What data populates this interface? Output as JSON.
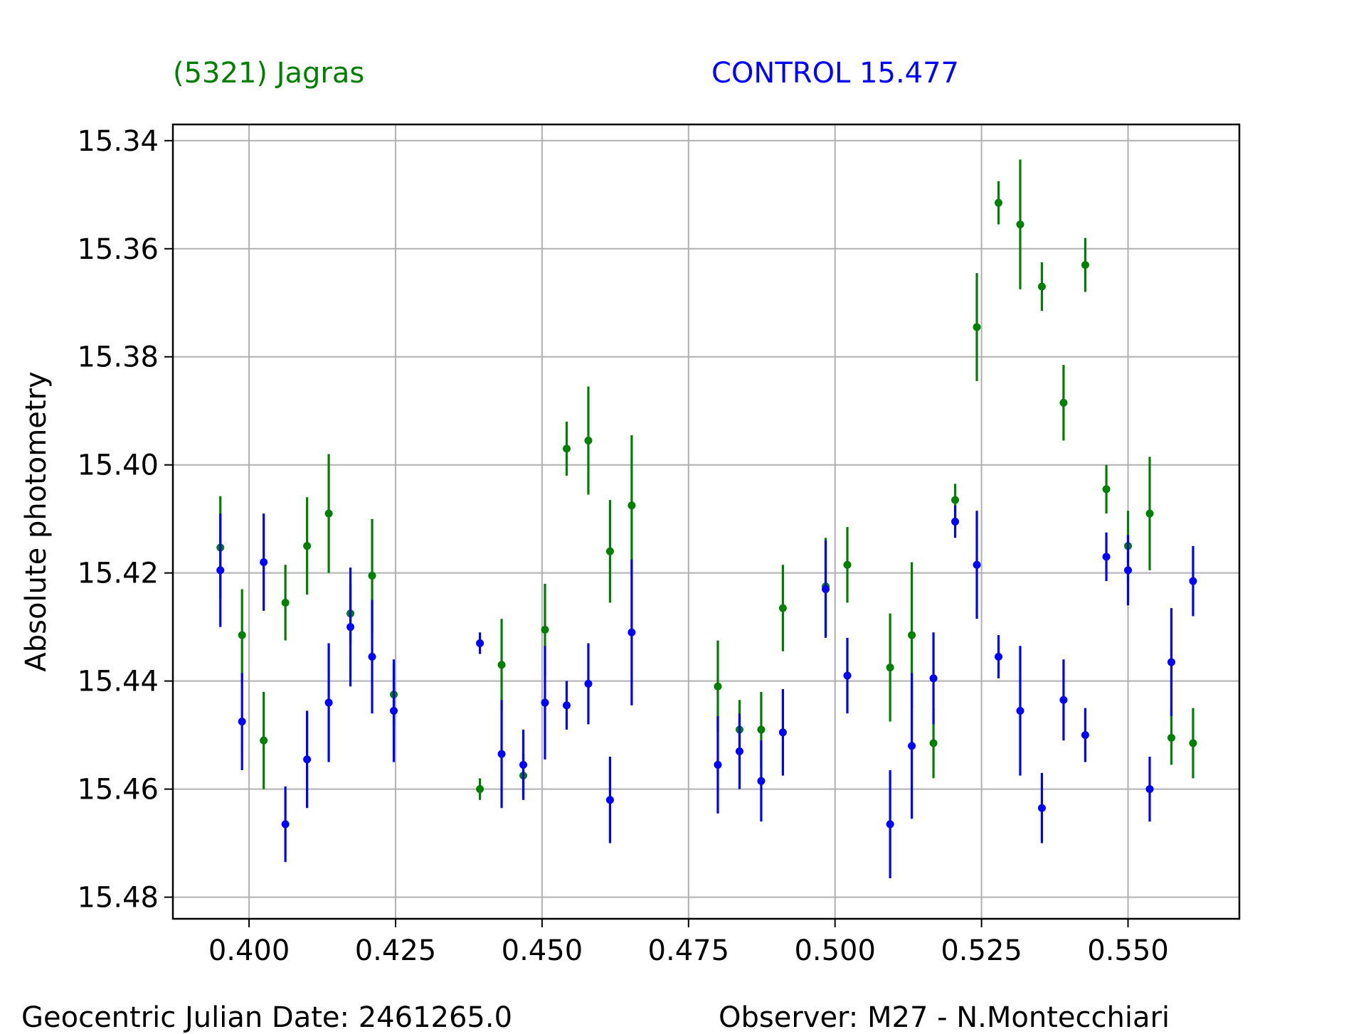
{
  "chart_data": {
    "type": "scatter",
    "ylabel": "Absolute photometry",
    "xlim": [
      0.387,
      0.569
    ],
    "ylim": [
      15.484,
      15.337
    ],
    "y_inverted": true,
    "grid": true,
    "xticks": [
      0.4,
      0.425,
      0.45,
      0.475,
      0.5,
      0.525,
      0.55
    ],
    "xtick_labels": [
      "0.400",
      "0.425",
      "0.450",
      "0.475",
      "0.500",
      "0.525",
      "0.550"
    ],
    "yticks": [
      15.34,
      15.36,
      15.38,
      15.4,
      15.42,
      15.44,
      15.46,
      15.48
    ],
    "ytick_labels": [
      "15.34",
      "15.36",
      "15.38",
      "15.40",
      "15.42",
      "15.44",
      "15.46",
      "15.48"
    ],
    "legend_placement": "top",
    "series": [
      {
        "name": "(5321) Jagras",
        "color": "#008000",
        "x": [
          0.3951,
          0.3988,
          0.4025,
          0.4062,
          0.4099,
          0.4136,
          0.4173,
          0.421,
          0.4247,
          0.4394,
          0.4431,
          0.4468,
          0.4505,
          0.4542,
          0.4579,
          0.4616,
          0.4653,
          0.48,
          0.4837,
          0.4874,
          0.4911,
          0.4984,
          0.5021,
          0.5094,
          0.5131,
          0.5168,
          0.5205,
          0.5242,
          0.5279,
          0.5316,
          0.5353,
          0.539,
          0.5427,
          0.5463,
          0.55,
          0.5537,
          0.5574,
          0.5611
        ],
        "y": [
          15.4153,
          15.4315,
          15.451,
          15.4255,
          15.415,
          15.409,
          15.4275,
          15.4205,
          15.4425,
          15.46,
          15.437,
          15.4575,
          15.4305,
          15.397,
          15.3955,
          15.416,
          15.4075,
          15.441,
          15.449,
          15.449,
          15.4265,
          15.4225,
          15.4185,
          15.4375,
          15.4315,
          15.4515,
          15.4065,
          15.3745,
          15.3515,
          15.3555,
          15.367,
          15.3885,
          15.363,
          15.4045,
          15.415,
          15.409,
          15.4505,
          15.4515
        ],
        "err": [
          0.0095,
          0.0085,
          0.009,
          0.007,
          0.009,
          0.011,
          0.0055,
          0.0105,
          0.0055,
          0.002,
          0.0085,
          0.004,
          0.0085,
          0.005,
          0.01,
          0.0095,
          0.013,
          0.0085,
          0.0055,
          0.007,
          0.008,
          0.009,
          0.007,
          0.01,
          0.0135,
          0.0065,
          0.003,
          0.01,
          0.004,
          0.012,
          0.0045,
          0.007,
          0.005,
          0.0045,
          0.0065,
          0.0105,
          0.005,
          0.0065
        ]
      },
      {
        "name": "CONTROL 15.477",
        "color": "#0000ff",
        "x": [
          0.3951,
          0.3988,
          0.4025,
          0.4062,
          0.4099,
          0.4136,
          0.4173,
          0.421,
          0.4247,
          0.4394,
          0.4431,
          0.4468,
          0.4505,
          0.4542,
          0.4579,
          0.4616,
          0.4653,
          0.48,
          0.4837,
          0.4874,
          0.4911,
          0.4984,
          0.5021,
          0.5094,
          0.5131,
          0.5168,
          0.5205,
          0.5242,
          0.5279,
          0.5316,
          0.5353,
          0.539,
          0.5427,
          0.5463,
          0.55,
          0.5537,
          0.5574,
          0.5611
        ],
        "y": [
          15.4195,
          15.4475,
          15.418,
          15.4665,
          15.4545,
          15.444,
          15.43,
          15.4355,
          15.4455,
          15.433,
          15.4535,
          15.4555,
          15.444,
          15.4445,
          15.4405,
          15.462,
          15.431,
          15.4555,
          15.453,
          15.4585,
          15.4495,
          15.423,
          15.439,
          15.4665,
          15.452,
          15.4395,
          15.4105,
          15.4185,
          15.4355,
          15.4455,
          15.4635,
          15.4435,
          15.45,
          15.417,
          15.4195,
          15.46,
          15.4365,
          15.4215
        ],
        "err": [
          0.0105,
          0.009,
          0.009,
          0.007,
          0.009,
          0.011,
          0.011,
          0.0105,
          0.0095,
          0.002,
          0.01,
          0.0065,
          0.0105,
          0.0045,
          0.0075,
          0.008,
          0.0135,
          0.009,
          0.007,
          0.0075,
          0.008,
          0.009,
          0.007,
          0.01,
          0.0135,
          0.0085,
          0.003,
          0.01,
          0.004,
          0.012,
          0.0065,
          0.0075,
          0.005,
          0.0045,
          0.0065,
          0.006,
          0.01,
          0.0065
        ]
      }
    ]
  },
  "footer": {
    "date_label": "Geocentric Julian Date: 2461265.0",
    "observer_label": "Observer: M27 - N.Montecchiari"
  }
}
